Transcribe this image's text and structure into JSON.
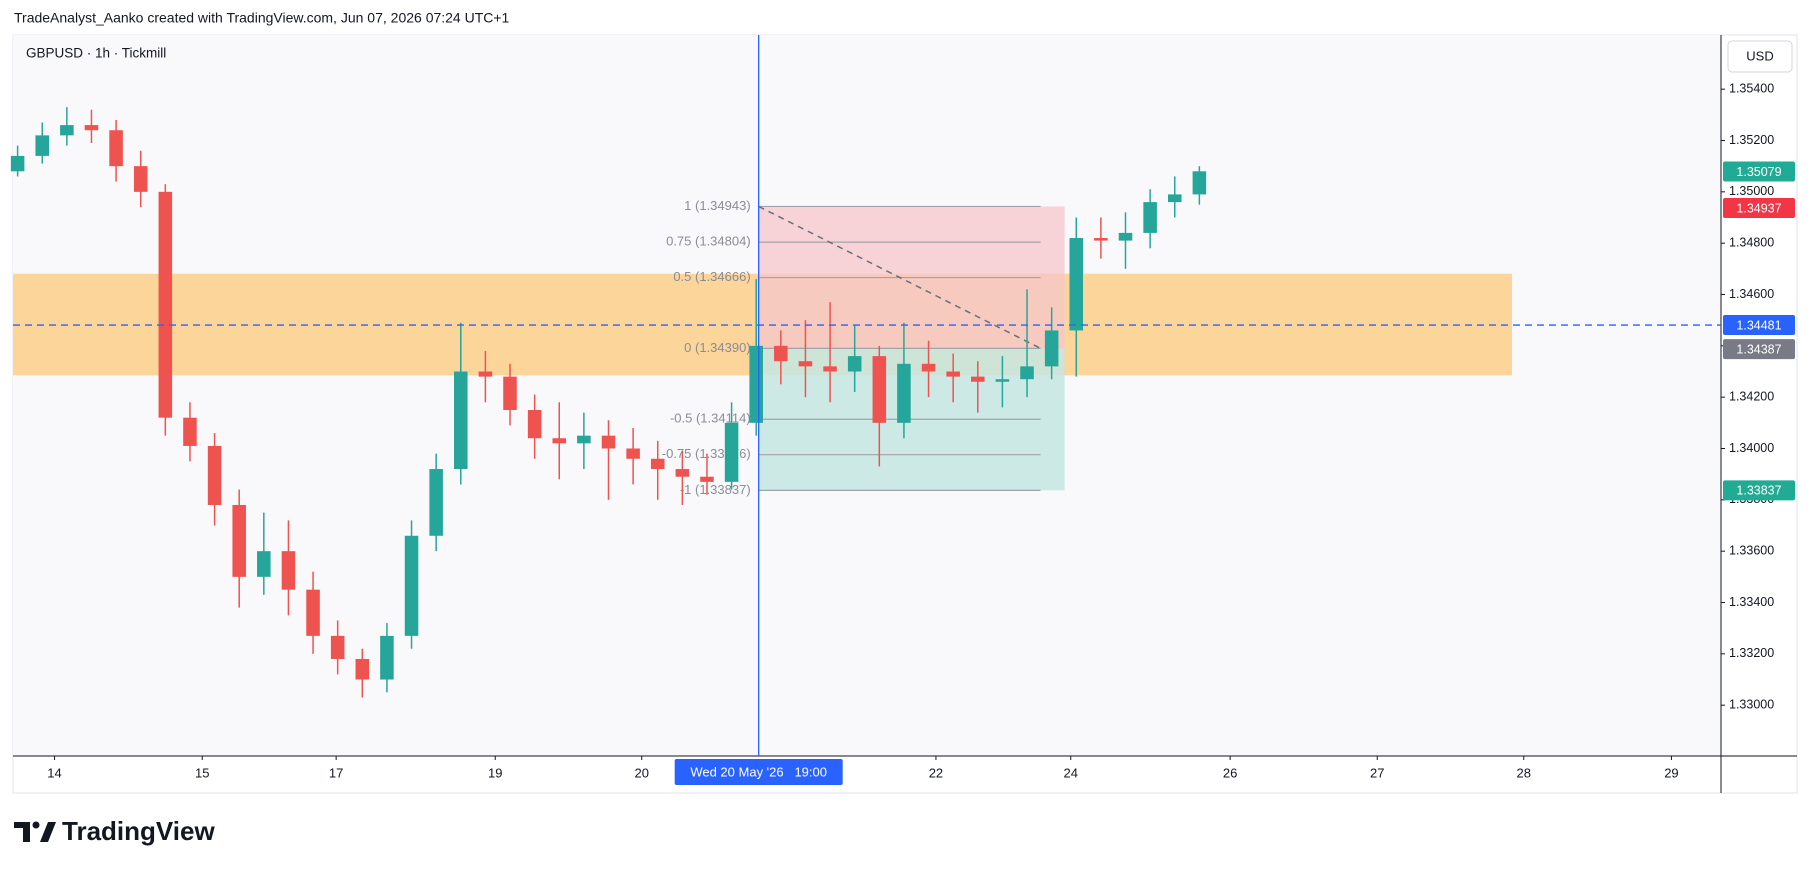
{
  "header": {
    "caption": "TradeAnalyst_Aanko created with TradingView.com, Jun 07, 2026 07:24 UTC+1"
  },
  "chart_data": {
    "type": "candlestick",
    "title": "GBPUSD · 1h · Tickmill",
    "currency": "USD",
    "up_color": "#26a69a",
    "down_color": "#ef5350",
    "grid": false,
    "x": [
      -6,
      -2,
      2,
      6,
      10,
      14,
      18,
      22,
      26,
      30,
      34,
      38,
      42,
      46,
      50,
      54,
      58,
      62,
      66,
      70,
      74,
      78,
      82,
      86,
      90,
      94,
      98,
      102,
      106,
      110,
      114,
      118,
      122,
      126,
      130,
      134,
      138,
      142,
      146,
      150,
      154,
      158,
      162,
      166,
      170,
      174,
      178,
      182,
      186
    ],
    "open": [
      1.3508,
      1.3514,
      1.3522,
      1.3526,
      1.3524,
      1.351,
      1.35,
      1.3412,
      1.3401,
      1.3378,
      1.335,
      1.336,
      1.3345,
      1.3327,
      1.3318,
      1.331,
      1.3327,
      1.3366,
      1.3392,
      1.343,
      1.3428,
      1.3415,
      1.3404,
      1.3402,
      1.3405,
      1.34,
      1.3396,
      1.3392,
      1.3389,
      1.3387,
      1.341,
      1.344,
      1.3434,
      1.3432,
      1.343,
      1.3436,
      1.341,
      1.3433,
      1.343,
      1.3428,
      1.3426,
      1.3427,
      1.3432,
      1.3446,
      1.3482,
      1.3481,
      1.3484,
      1.3496,
      1.3499
    ],
    "high": [
      1.3518,
      1.3527,
      1.3533,
      1.3532,
      1.3528,
      1.3516,
      1.3503,
      1.3418,
      1.3406,
      1.3384,
      1.3375,
      1.3372,
      1.3352,
      1.3333,
      1.3322,
      1.3332,
      1.3372,
      1.3398,
      1.3449,
      1.3438,
      1.3433,
      1.3421,
      1.3418,
      1.3414,
      1.3411,
      1.3408,
      1.3403,
      1.3399,
      1.3398,
      1.3418,
      1.3466,
      1.3446,
      1.345,
      1.3457,
      1.3448,
      1.344,
      1.3449,
      1.3442,
      1.3437,
      1.3434,
      1.3436,
      1.3462,
      1.3455,
      1.349,
      1.349,
      1.3492,
      1.3501,
      1.3506,
      1.351
    ],
    "low": [
      1.3506,
      1.3511,
      1.3518,
      1.3519,
      1.3504,
      1.3494,
      1.3405,
      1.3395,
      1.337,
      1.3338,
      1.3343,
      1.3335,
      1.332,
      1.3312,
      1.3303,
      1.3305,
      1.3322,
      1.336,
      1.3386,
      1.3418,
      1.3409,
      1.3396,
      1.3388,
      1.3392,
      1.338,
      1.3386,
      1.338,
      1.3378,
      1.3382,
      1.3384,
      1.3405,
      1.3425,
      1.342,
      1.3418,
      1.3422,
      1.3393,
      1.3404,
      1.342,
      1.3418,
      1.3414,
      1.3416,
      1.342,
      1.3427,
      1.3428,
      1.3474,
      1.347,
      1.3478,
      1.349,
      1.3495
    ],
    "close": [
      1.3514,
      1.3522,
      1.3526,
      1.3524,
      1.351,
      1.35,
      1.3412,
      1.3401,
      1.3378,
      1.335,
      1.336,
      1.3345,
      1.3327,
      1.3318,
      1.331,
      1.3327,
      1.3366,
      1.3392,
      1.343,
      1.3428,
      1.3415,
      1.3404,
      1.3402,
      1.3405,
      1.34,
      1.3396,
      1.3392,
      1.3389,
      1.3387,
      1.341,
      1.344,
      1.3434,
      1.3432,
      1.343,
      1.3436,
      1.341,
      1.3433,
      1.343,
      1.3428,
      1.3426,
      1.3427,
      1.3432,
      1.3446,
      1.3482,
      1.3481,
      1.3484,
      1.3496,
      1.3499,
      1.3508
    ],
    "xlim": [
      -6.75,
      270.75
    ],
    "xticks": [
      {
        "value": 0,
        "label": "14"
      },
      {
        "value": 24,
        "label": "15"
      },
      {
        "value": 45.75,
        "label": "17"
      },
      {
        "value": 71.6,
        "label": "19"
      },
      {
        "value": 95.4,
        "label": "20"
      },
      {
        "value": 143.2,
        "label": "22"
      },
      {
        "value": 165.1,
        "label": "24"
      },
      {
        "value": 191,
        "label": "26"
      },
      {
        "value": 214.9,
        "label": "27"
      },
      {
        "value": 238.7,
        "label": "28"
      },
      {
        "value": 262.7,
        "label": "29"
      }
    ],
    "ylim": [
      1.32802,
      1.35611
    ],
    "yticks": [
      {
        "value": 1.33,
        "label": "1.33000"
      },
      {
        "value": 1.332,
        "label": "1.33200"
      },
      {
        "value": 1.334,
        "label": "1.33400"
      },
      {
        "value": 1.336,
        "label": "1.33600"
      },
      {
        "value": 1.338,
        "label": "1.33800"
      },
      {
        "value": 1.34,
        "label": "1.34000"
      },
      {
        "value": 1.342,
        "label": "1.34200"
      },
      {
        "value": 1.344,
        "label": "1.34400"
      },
      {
        "value": 1.346,
        "label": "1.34600"
      },
      {
        "value": 1.348,
        "label": "1.34800"
      },
      {
        "value": 1.35,
        "label": "1.35000"
      },
      {
        "value": 1.352,
        "label": "1.35200"
      },
      {
        "value": 1.354,
        "label": "1.35400"
      }
    ],
    "zone": {
      "low": 1.34285,
      "high": 1.34681,
      "x": [
        -6.75,
        236.8
      ],
      "color": "#fbd08f"
    },
    "fib": {
      "x": [
        114.4,
        164.1
      ],
      "upper_color": "#f5c6cc",
      "lower_color": "#c6e6e1",
      "levels": [
        {
          "value": 1.34943,
          "label": "1 (1.34943)"
        },
        {
          "value": 1.34804,
          "label": "0.75 (1.34804)"
        },
        {
          "value": 1.34666,
          "label": "0.5 (1.34666)"
        },
        {
          "value": 1.3439,
          "label": "0 (1.34390)"
        },
        {
          "value": 1.34114,
          "label": "-0.5 (1.34114)"
        },
        {
          "value": 1.33976,
          "label": "-0.75 (1.33976)"
        },
        {
          "value": 1.33837,
          "label": "-1 (1.33837)"
        }
      ]
    },
    "crosshair": {
      "x": 114.4,
      "label": "Wed 20 May '26   19:00",
      "color": "#2962ff"
    },
    "price_labels": [
      {
        "value": 1.35079,
        "color": "#22ab94"
      },
      {
        "value": 1.34937,
        "color": "#f23645"
      },
      {
        "value": 1.34481,
        "color": "#2962ff",
        "line": "dashed"
      },
      {
        "value": 1.34387,
        "color": "#787b86"
      },
      {
        "value": 1.33837,
        "color": "#22ab94"
      }
    ]
  },
  "footer": {
    "logo": "TradingView"
  }
}
